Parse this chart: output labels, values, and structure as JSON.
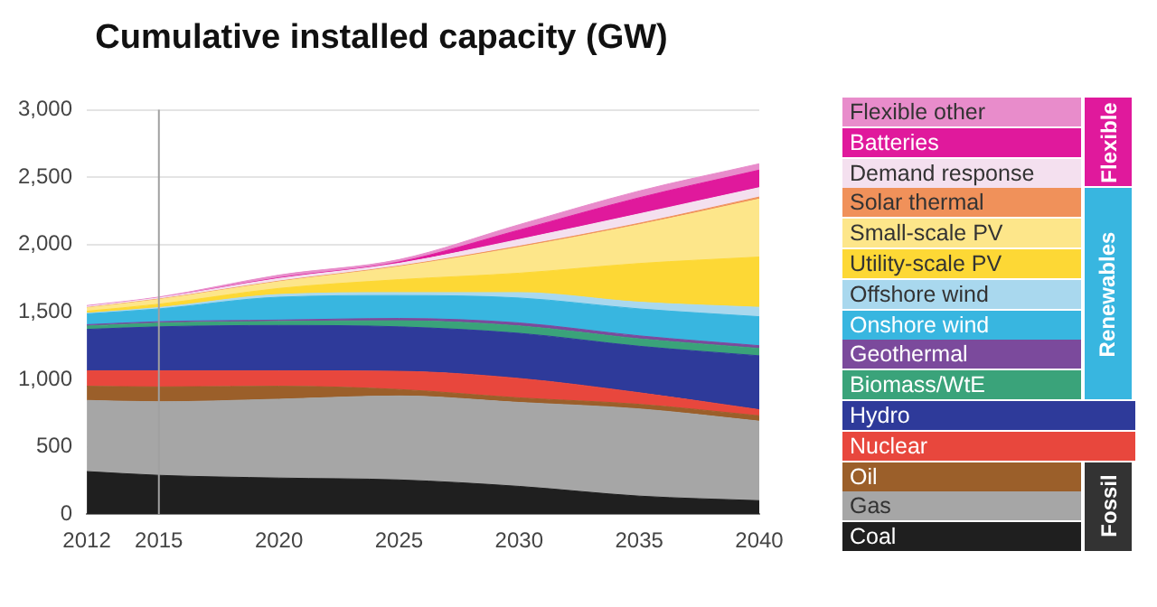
{
  "chart_data": {
    "type": "area",
    "title": "Cumulative installed capacity (GW)",
    "stacked": true,
    "x": [
      2012,
      2015,
      2020,
      2025,
      2030,
      2035,
      2040
    ],
    "xlim": [
      2012,
      2040
    ],
    "xticks": [
      2012,
      2015,
      2020,
      2025,
      2030,
      2035,
      2040
    ],
    "ylim": [
      0,
      3000
    ],
    "yticks": [
      0,
      500,
      {
        "value": 1000,
        "label": "1,000"
      },
      {
        "value": 1500,
        "label": "1,500"
      },
      {
        "value": 2000,
        "label": "2,000"
      },
      {
        "value": 2500,
        "label": "2,500"
      },
      {
        "value": 3000,
        "label": "3,000"
      }
    ],
    "grid": "y",
    "legend": "right",
    "marker": "none",
    "ref_lines": [
      {
        "axis": "x",
        "value": 2015,
        "color": "#a0a0a0"
      }
    ],
    "annotations": [
      "Flexible",
      "Renewables",
      "Fossil"
    ],
    "series": [
      {
        "name": "Coal",
        "color": "#1f1f1f",
        "values": [
          316,
          288,
          268,
          254,
          206,
          134,
          100
        ]
      },
      {
        "name": "Gas",
        "color": "#a6a6a6",
        "values": [
          528,
          546,
          585,
          623,
          623,
          647,
          590
        ]
      },
      {
        "name": "Oil",
        "color": "#9b5f2a",
        "values": [
          105,
          110,
          96,
          48,
          34,
          34,
          40
        ]
      },
      {
        "name": "Nuclear",
        "color": "#e8473d",
        "values": [
          115,
          120,
          115,
          135,
          144,
          86,
          45
        ]
      },
      {
        "name": "Hydro",
        "color": "#2e3a9a",
        "values": [
          307,
          326,
          336,
          330,
          335,
          345,
          400
        ]
      },
      {
        "name": "Biomass/WtE",
        "color": "#3aa37a",
        "values": [
          25,
          28,
          30,
          45,
          55,
          55,
          55
        ]
      },
      {
        "name": "Geothermal",
        "color": "#7b4a9c",
        "values": [
          10,
          10,
          10,
          17,
          22,
          22,
          20
        ]
      },
      {
        "name": "Onshore wind",
        "color": "#38b6e0",
        "values": [
          80,
          95,
          170,
          170,
          185,
          200,
          215
        ]
      },
      {
        "name": "Offshore wind",
        "color": "#a9d8ee",
        "values": [
          5,
          10,
          20,
          22,
          40,
          50,
          70
        ]
      },
      {
        "name": "Utility-scale PV",
        "color": "#fdd835",
        "values": [
          15,
          25,
          45,
          96,
          144,
          287,
          373
        ]
      },
      {
        "name": "Small-scale PV",
        "color": "#fde68a",
        "values": [
          25,
          35,
          50,
          96,
          192,
          288,
          430
        ]
      },
      {
        "name": "Solar thermal",
        "color": "#f0915a",
        "values": [
          2,
          3,
          4,
          5,
          8,
          10,
          15
        ]
      },
      {
        "name": "Demand response",
        "color": "#f4e0ef",
        "values": [
          10,
          10,
          20,
          20,
          50,
          70,
          70
        ]
      },
      {
        "name": "Batteries",
        "color": "#e0199c",
        "values": [
          0,
          0,
          5,
          10,
          70,
          120,
          130
        ]
      },
      {
        "name": "Flexible other",
        "color": "#e88ccb",
        "values": [
          5,
          5,
          20,
          18,
          40,
          50,
          47
        ]
      }
    ]
  }
}
